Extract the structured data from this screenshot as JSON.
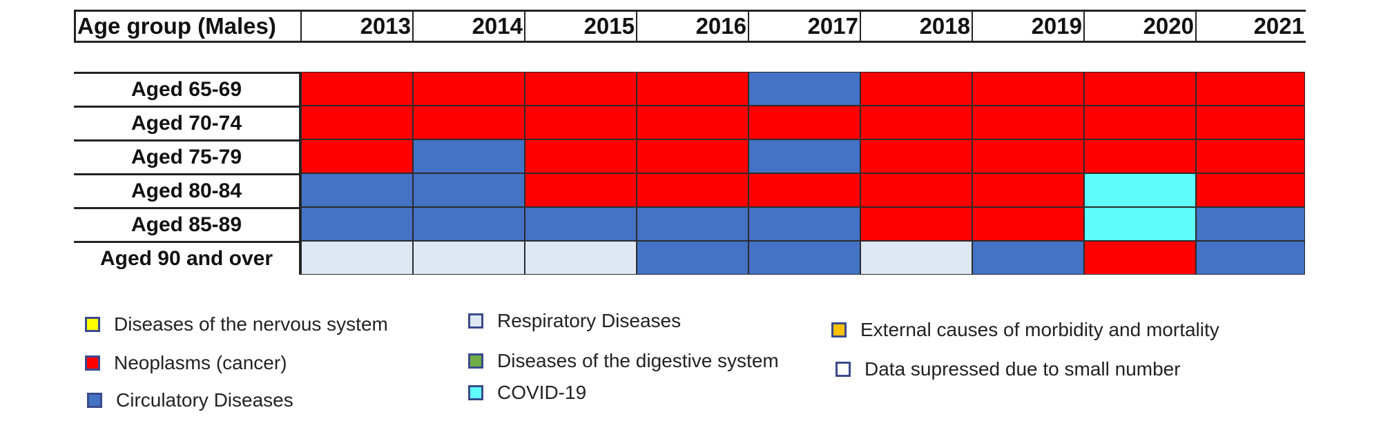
{
  "chart_data": {
    "type": "heatmap",
    "row_header": "Age group (Males)",
    "years": [
      "2013",
      "2014",
      "2015",
      "2016",
      "2017",
      "2018",
      "2019",
      "2020",
      "2021"
    ],
    "rows": [
      {
        "label": "Aged 65-69",
        "values": [
          "neoplasms",
          "neoplasms",
          "neoplasms",
          "neoplasms",
          "circulatory",
          "neoplasms",
          "neoplasms",
          "neoplasms",
          "neoplasms"
        ]
      },
      {
        "label": "Aged 70-74",
        "values": [
          "neoplasms",
          "neoplasms",
          "neoplasms",
          "neoplasms",
          "neoplasms",
          "neoplasms",
          "neoplasms",
          "neoplasms",
          "neoplasms"
        ]
      },
      {
        "label": "Aged 75-79",
        "values": [
          "neoplasms",
          "circulatory",
          "neoplasms",
          "neoplasms",
          "circulatory",
          "neoplasms",
          "neoplasms",
          "neoplasms",
          "neoplasms"
        ]
      },
      {
        "label": "Aged 80-84",
        "values": [
          "circulatory",
          "circulatory",
          "neoplasms",
          "neoplasms",
          "neoplasms",
          "neoplasms",
          "neoplasms",
          "covid",
          "neoplasms"
        ]
      },
      {
        "label": "Aged 85-89",
        "values": [
          "circulatory",
          "circulatory",
          "circulatory",
          "circulatory",
          "circulatory",
          "neoplasms",
          "neoplasms",
          "covid",
          "circulatory"
        ]
      },
      {
        "label": "Aged 90 and over",
        "values": [
          "respiratory",
          "respiratory",
          "respiratory",
          "circulatory",
          "circulatory",
          "respiratory",
          "circulatory",
          "neoplasms",
          "circulatory"
        ]
      }
    ],
    "categories": {
      "nervous": {
        "label": "Diseases of the nervous system",
        "color": "#ffff00"
      },
      "neoplasms": {
        "label": "Neoplasms (cancer)",
        "color": "#ff0000"
      },
      "circulatory": {
        "label": "Circulatory Diseases",
        "color": "#4472c4"
      },
      "respiratory": {
        "label": "Respiratory Diseases",
        "color": "#dde8f4"
      },
      "digestive": {
        "label": "Diseases of the digestive system",
        "color": "#70ad47"
      },
      "covid": {
        "label": "COVID-19",
        "color": "#5ffcfc"
      },
      "external": {
        "label": "External causes of morbidity and mortality",
        "color": "#ffc000"
      },
      "suppressed": {
        "label": "Data supressed due to small number",
        "color": "#ffffff"
      }
    },
    "legend_order": [
      "nervous",
      "neoplasms",
      "circulatory",
      "respiratory",
      "digestive",
      "covid",
      "external",
      "suppressed"
    ]
  }
}
